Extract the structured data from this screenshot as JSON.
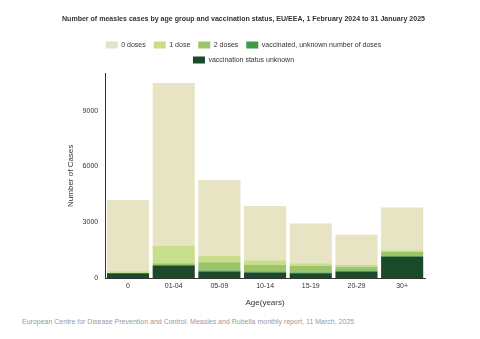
{
  "chart_data": {
    "type": "bar",
    "title": "Number of measles cases by age group and vaccination status, EU/EEA, 1 February 2024 to 31 January 2025",
    "x_label": "Age(years)",
    "y_label": "Number of Cases",
    "source": "European Centre for Disease Prevention and Control. Measles and Rubella monthly report, 11 March, 2025",
    "categories": [
      "0",
      "01-04",
      "05-09",
      "10-14",
      "15-19",
      "20-29",
      "30+"
    ],
    "series": [
      {
        "name": "0 doses",
        "color": "#e6e4c2",
        "values": [
          3840,
          8770,
          4070,
          2920,
          2130,
          1630,
          2300
        ]
      },
      {
        "name": "1 dose",
        "color": "#c8de8c",
        "values": [
          80,
          930,
          350,
          250,
          150,
          100,
          100
        ]
      },
      {
        "name": "2 doses",
        "color": "#9cc56a",
        "values": [
          10,
          100,
          450,
          350,
          350,
          200,
          200
        ]
      },
      {
        "name": "vaccinated, unknown number of doses",
        "color": "#3f9a45",
        "values": [
          20,
          50,
          50,
          50,
          50,
          50,
          50
        ]
      },
      {
        "name": "vaccination status unknown",
        "color": "#1a4a2a",
        "values": [
          250,
          650,
          350,
          300,
          250,
          350,
          1150
        ]
      }
    ],
    "stacked": true,
    "ylim": [
      0,
      11000
    ],
    "yticks": [
      0,
      3000,
      6000,
      9000
    ],
    "grid": false,
    "legend": "top"
  }
}
